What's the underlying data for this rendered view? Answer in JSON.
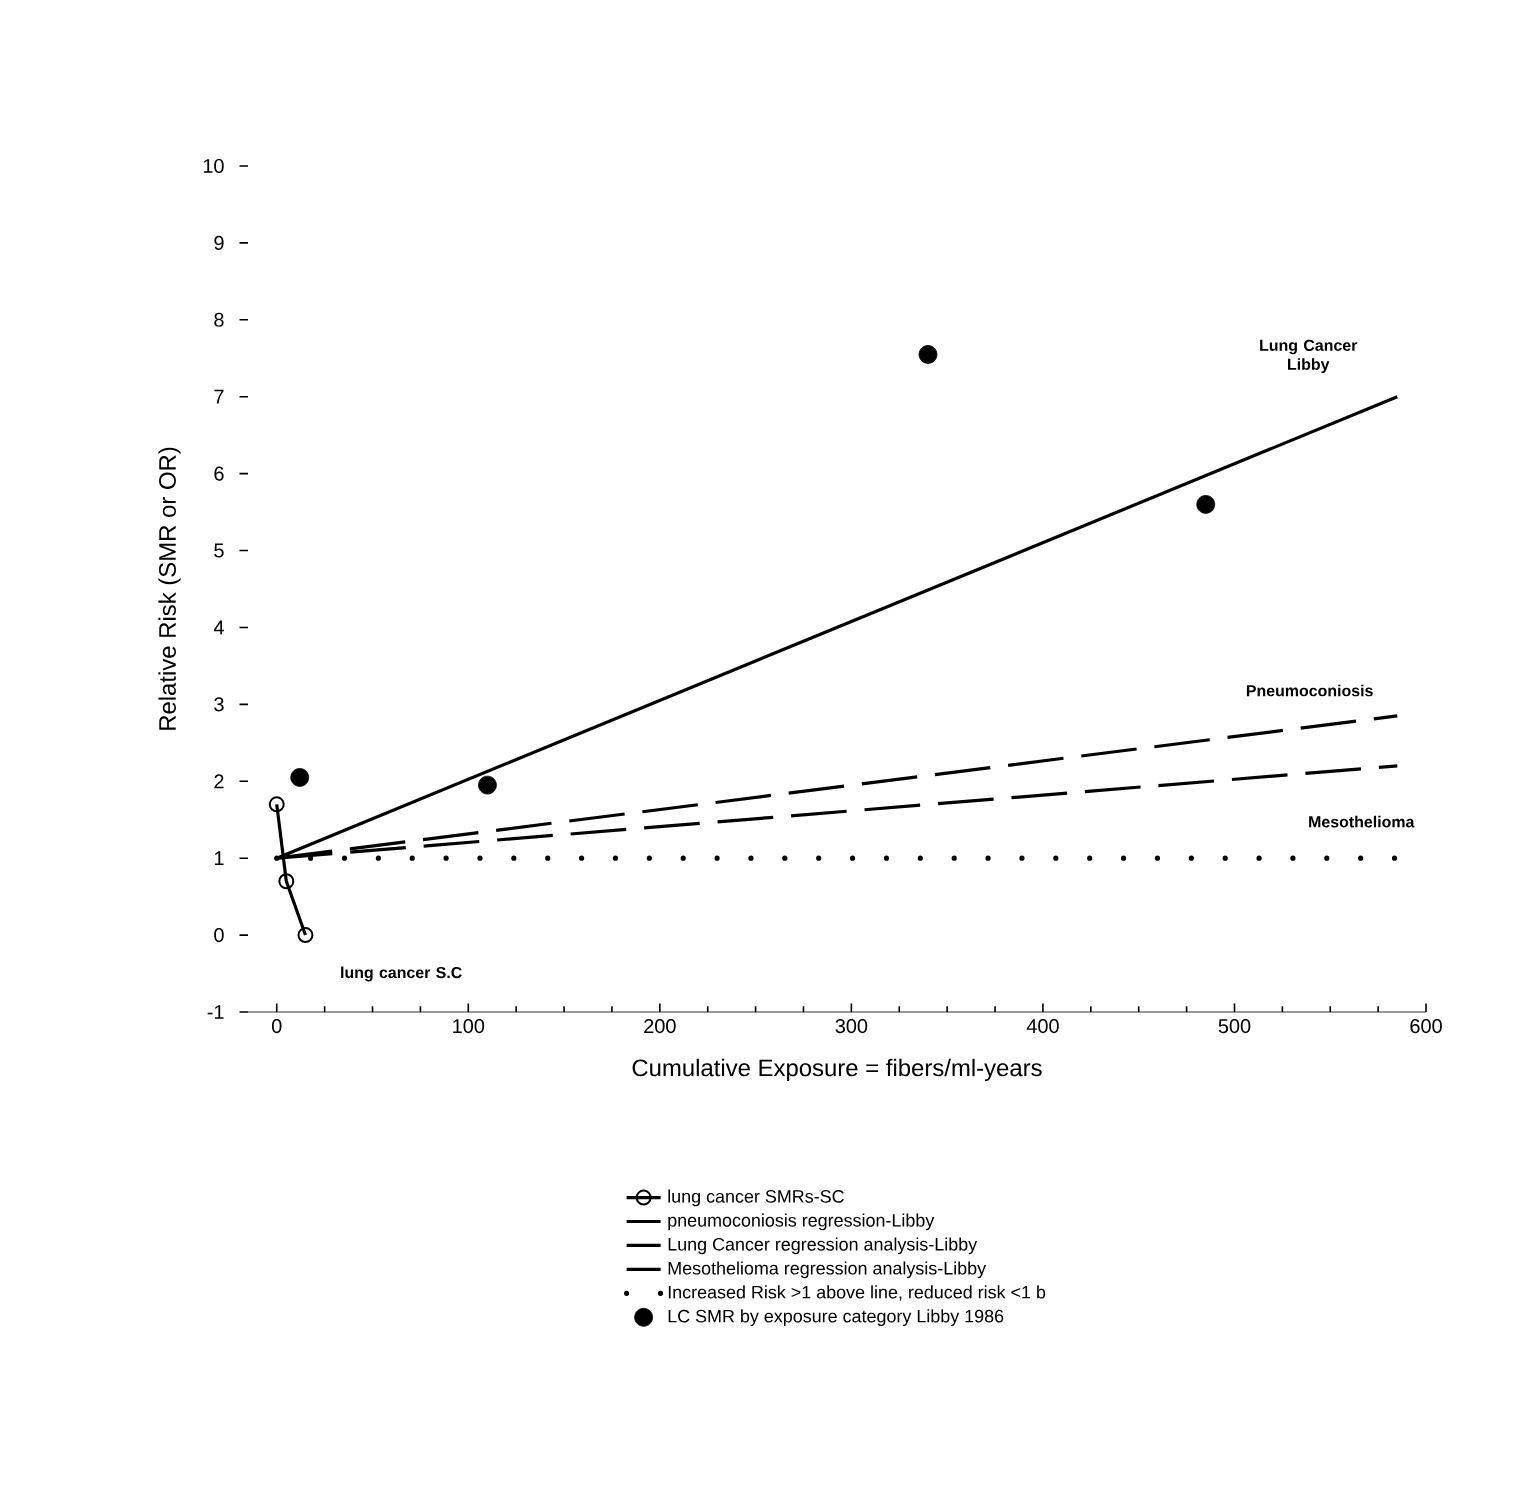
{
  "chart_data": {
    "type": "line",
    "xlabel": "Cumulative Exposure = fibers/ml-years",
    "ylabel": "Relative Risk (SMR or OR)",
    "xlim": [
      -15,
      600
    ],
    "ylim": [
      -1,
      10
    ],
    "xticks": [
      0,
      100,
      200,
      300,
      400,
      500,
      600
    ],
    "yticks": [
      -1,
      0,
      1,
      2,
      3,
      4,
      5,
      6,
      7,
      8,
      9,
      10
    ],
    "legend": "bottom",
    "series": [
      {
        "name": "lung cancer SMRs-SC",
        "marker": "circle",
        "line_style": "solid",
        "color": "#000000",
        "x": [
          0,
          5,
          15
        ],
        "values": [
          1.7,
          0.7,
          0.0
        ]
      },
      {
        "name": "pneumoconiosis regression-Libby",
        "marker": "none",
        "line_style": "dashed",
        "color": "#000000",
        "x": [
          0,
          585
        ],
        "values": [
          1,
          2.85
        ]
      },
      {
        "name": "Lung Cancer regression analysis-Libby",
        "marker": "none",
        "line_style": "solid",
        "color": "#000000",
        "x": [
          0,
          585
        ],
        "values": [
          1,
          7.0
        ]
      },
      {
        "name": "Mesothelioma regression analysis-Libby",
        "marker": "none",
        "line_style": "dashed",
        "color": "#000000",
        "x": [
          0,
          585
        ],
        "values": [
          1,
          2.2
        ]
      },
      {
        "name": "Increased Risk >1 above line, reduced risk <1 b",
        "marker": "none",
        "line_style": "dotted",
        "color": "#000000",
        "x": [
          0,
          585
        ],
        "values": [
          1,
          1
        ]
      },
      {
        "name": "LC SMR by exposure category Libby 1986",
        "type": "scatter",
        "marker": "circle",
        "color": "#000000",
        "x": [
          12,
          110,
          340,
          485
        ],
        "values": [
          2.05,
          1.95,
          7.55,
          5.6
        ]
      }
    ],
    "annotations": [
      "Lung Cancer Libby",
      "Pneumoconiosis",
      "Mesothelioma",
      "lung cancer S.C"
    ]
  }
}
